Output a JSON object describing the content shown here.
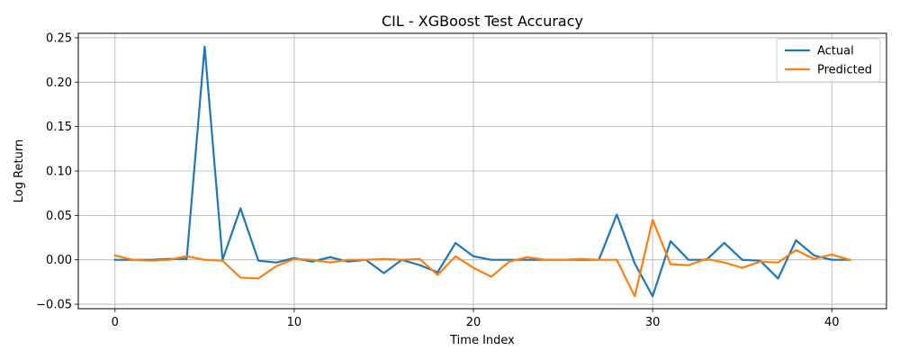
{
  "chart_data": {
    "type": "line",
    "title": "CIL - XGBoost Test Accuracy",
    "xlabel": "Time Index",
    "ylabel": "Log Return",
    "xlim": [
      -2.05,
      43.05
    ],
    "ylim": [
      -0.055,
      0.255
    ],
    "xticks": [
      0,
      10,
      20,
      30,
      40
    ],
    "xtick_labels": [
      "0",
      "10",
      "20",
      "30",
      "40"
    ],
    "yticks": [
      -0.05,
      0.0,
      0.05,
      0.1,
      0.15,
      0.2,
      0.25
    ],
    "ytick_labels": [
      "−0.05",
      "0.00",
      "0.05",
      "0.10",
      "0.15",
      "0.20",
      "0.25"
    ],
    "grid": true,
    "legend_position": "top-right",
    "x": [
      0,
      1,
      2,
      3,
      4,
      5,
      6,
      7,
      8,
      9,
      10,
      11,
      12,
      13,
      14,
      15,
      16,
      17,
      18,
      19,
      20,
      21,
      22,
      23,
      24,
      25,
      26,
      27,
      28,
      29,
      30,
      31,
      32,
      33,
      34,
      35,
      36,
      37,
      38,
      39,
      40,
      41
    ],
    "series": [
      {
        "name": "Actual",
        "color": "#1f77b4",
        "values": [
          0.0,
          0.0,
          0.0,
          0.001,
          0.001,
          0.24,
          0.0,
          0.058,
          -0.001,
          -0.003,
          0.002,
          -0.002,
          0.003,
          -0.002,
          0.0,
          -0.015,
          0.0,
          -0.006,
          -0.014,
          0.019,
          0.004,
          0.0,
          0.0,
          0.0,
          0.0,
          0.0,
          0.0,
          0.0,
          0.051,
          -0.004,
          -0.041,
          0.021,
          0.0,
          0.0,
          0.019,
          0.0,
          -0.001,
          -0.021,
          0.022,
          0.005,
          0.0,
          0.0
        ]
      },
      {
        "name": "Predicted",
        "color": "#ff7f0e",
        "values": [
          0.005,
          0.0,
          -0.001,
          0.0,
          0.004,
          0.0,
          -0.001,
          -0.02,
          -0.021,
          -0.007,
          0.001,
          0.0,
          -0.003,
          0.0,
          0.0,
          0.001,
          0.0,
          0.001,
          -0.017,
          0.004,
          -0.009,
          -0.019,
          -0.002,
          0.003,
          0.0,
          0.0,
          0.001,
          0.0,
          0.0,
          -0.041,
          0.045,
          -0.005,
          -0.006,
          0.001,
          -0.003,
          -0.009,
          -0.002,
          -0.003,
          0.011,
          0.001,
          0.006,
          0.0
        ]
      }
    ]
  }
}
